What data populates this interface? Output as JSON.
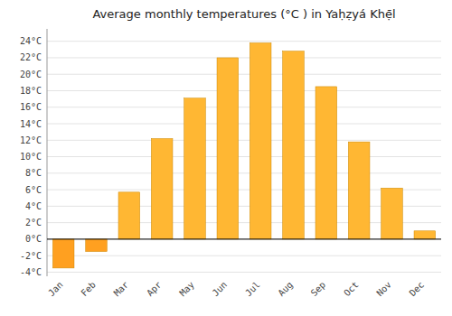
{
  "chart_data": {
    "type": "bar",
    "title": "Average monthly temperatures (°C ) in Yaḥẓyá Khẹ̄l",
    "categories": [
      "Jan",
      "Feb",
      "Mar",
      "Apr",
      "May",
      "Jun",
      "Jul",
      "Aug",
      "Sep",
      "Oct",
      "Nov",
      "Dec"
    ],
    "values": [
      -3.5,
      -1.5,
      5.7,
      12.2,
      17.1,
      22.0,
      23.8,
      22.8,
      18.5,
      11.8,
      6.2,
      1.0
    ],
    "colors": [
      "#FFA020",
      "#FFA020",
      "#FFB733",
      "#FFB733",
      "#FFB733",
      "#FFB733",
      "#FFB733",
      "#FFB733",
      "#FFB733",
      "#FFB733",
      "#FFB733",
      "#FFB733"
    ],
    "ylim": [
      -4.5,
      25.5
    ],
    "yticks": [
      {
        "value": -4,
        "label": "-4°C"
      },
      {
        "value": -2,
        "label": "-2°C"
      },
      {
        "value": 0,
        "label": "0°C"
      },
      {
        "value": 2,
        "label": "2°C"
      },
      {
        "value": 4,
        "label": "4°C"
      },
      {
        "value": 6,
        "label": "6°C"
      },
      {
        "value": 8,
        "label": "8°C"
      },
      {
        "value": 10,
        "label": "10°C"
      },
      {
        "value": 12,
        "label": "12°C"
      },
      {
        "value": 14,
        "label": "14°C"
      },
      {
        "value": 16,
        "label": "16°C"
      },
      {
        "value": 18,
        "label": "18°C"
      },
      {
        "value": 20,
        "label": "20°C"
      },
      {
        "value": 22,
        "label": "22°C"
      },
      {
        "value": 24,
        "label": "24°C"
      }
    ],
    "grid": true
  }
}
